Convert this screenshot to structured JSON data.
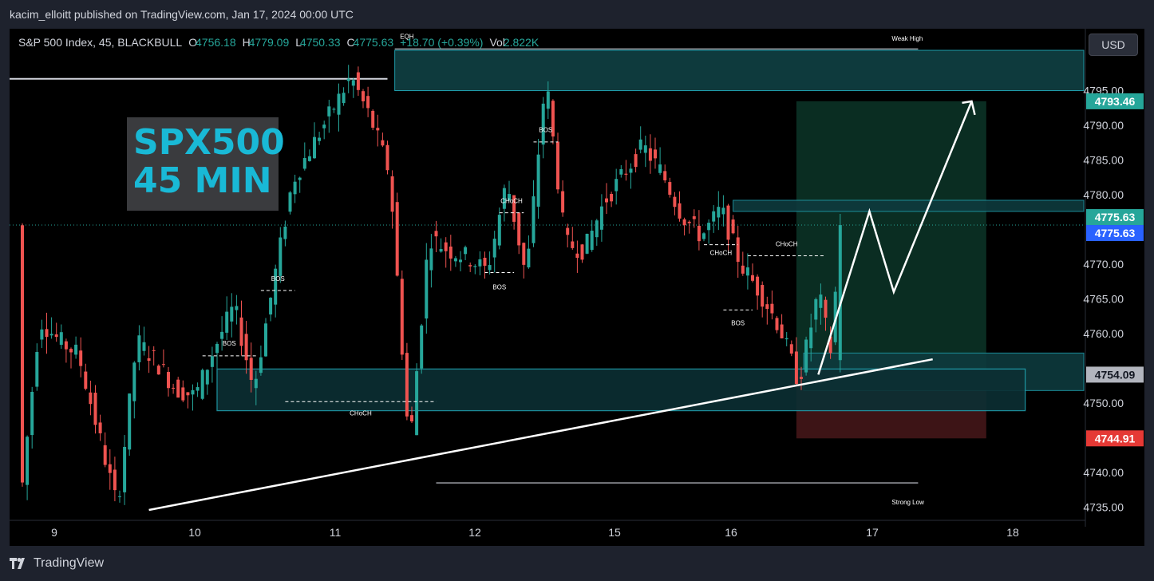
{
  "header": {
    "author": "kacim_elloitt",
    "published_text": "published on TradingView.com, Jan 17, 2024 00:00 UTC"
  },
  "legend": {
    "symbol": "S&P 500 Index, 45, BLACKBULL",
    "open_key": "O",
    "open": "4756.18",
    "high_key": "H",
    "high": "4779.09",
    "low_key": "L",
    "low": "4750.33",
    "close_key": "C",
    "close": "4775.63",
    "change": "+18.70 (+0.39%)",
    "vol_key": "Vol",
    "vol": "2.822K"
  },
  "currency_button": "USD",
  "overlay_title": {
    "line1": "SPX500",
    "line2": "45 MIN"
  },
  "footer": {
    "brand": "TradingView"
  },
  "colors": {
    "up": "#26a69a",
    "down": "#ef5350",
    "zone": "#0e3a3d",
    "zone_border": "#1f9aa8",
    "target": "#0b2f24",
    "stop": "#3d1416",
    "price_tag_green": "#26a69a",
    "price_tag_blue": "#2962ff",
    "price_tag_red": "#e53935",
    "price_tag_gray": "#b2b5be"
  },
  "chart_data": {
    "type": "candlestick",
    "symbol": "S&P 500 Index",
    "timeframe": "45",
    "ylim": [
      4733,
      4803
    ],
    "y_ticks": [
      4735,
      4740,
      4745,
      4750,
      4755,
      4760,
      4765,
      4770,
      4775,
      4780,
      4785,
      4790,
      4795
    ],
    "y_tick_labels": [
      "4735.00",
      "4740.00",
      "4745.00",
      "4750.00",
      "4755.00",
      "4760.00",
      "4765.00",
      "4770.00",
      "4775.00",
      "4780.00",
      "4785.00",
      "4790.00",
      "4795.00"
    ],
    "x_tick_labels": [
      "9",
      "10",
      "11",
      "12",
      "15",
      "16",
      "17",
      "18"
    ],
    "price_labels": [
      {
        "value": 4793.46,
        "text": "4793.46",
        "kind": "target"
      },
      {
        "value": 4775.63,
        "text": "4775.63",
        "kind": "last"
      },
      {
        "value": 4775.63,
        "text": "4775.63",
        "kind": "close"
      },
      {
        "value": 4754.09,
        "text": "4754.09",
        "kind": "entry"
      },
      {
        "value": 4744.91,
        "text": "4744.91",
        "kind": "stop"
      }
    ],
    "annotations": [
      {
        "text": "EQH"
      },
      {
        "text": "Weak High"
      },
      {
        "text": "Strong Low"
      },
      {
        "text": "BOS"
      },
      {
        "text": "BOS"
      },
      {
        "text": "BOS"
      },
      {
        "text": "BOS"
      },
      {
        "text": "BOS"
      },
      {
        "text": "CHoCH"
      },
      {
        "text": "CHoCH"
      },
      {
        "text": "CHoCH"
      },
      {
        "text": "CHoCH"
      }
    ],
    "position": {
      "entry": 4754.09,
      "target": 4793.46,
      "stop": 4744.91
    },
    "anchors": [
      {
        "slot": 0,
        "price": 4735
      },
      {
        "slot": 4,
        "price": 4762
      },
      {
        "slot": 8,
        "price": 4759
      },
      {
        "slot": 12,
        "price": 4757
      },
      {
        "slot": 16,
        "price": 4746
      },
      {
        "slot": 20,
        "price": 4735
      },
      {
        "slot": 24,
        "price": 4759
      },
      {
        "slot": 28,
        "price": 4756
      },
      {
        "slot": 32,
        "price": 4752
      },
      {
        "slot": 36,
        "price": 4751
      },
      {
        "slot": 40,
        "price": 4758
      },
      {
        "slot": 44,
        "price": 4764
      },
      {
        "slot": 48,
        "price": 4752
      },
      {
        "slot": 52,
        "price": 4767
      },
      {
        "slot": 56,
        "price": 4782
      },
      {
        "slot": 60,
        "price": 4787
      },
      {
        "slot": 64,
        "price": 4792
      },
      {
        "slot": 68,
        "price": 4797
      },
      {
        "slot": 72,
        "price": 4791
      },
      {
        "slot": 76,
        "price": 4783
      },
      {
        "slot": 80,
        "price": 4743
      },
      {
        "slot": 84,
        "price": 4774
      },
      {
        "slot": 88,
        "price": 4772
      },
      {
        "slot": 92,
        "price": 4771
      },
      {
        "slot": 96,
        "price": 4769
      },
      {
        "slot": 100,
        "price": 4782
      },
      {
        "slot": 104,
        "price": 4768
      },
      {
        "slot": 108,
        "price": 4797
      },
      {
        "slot": 112,
        "price": 4773
      },
      {
        "slot": 116,
        "price": 4772
      },
      {
        "slot": 120,
        "price": 4779
      },
      {
        "slot": 124,
        "price": 4783
      },
      {
        "slot": 128,
        "price": 4787
      },
      {
        "slot": 132,
        "price": 4783
      },
      {
        "slot": 136,
        "price": 4777
      },
      {
        "slot": 140,
        "price": 4774
      },
      {
        "slot": 144,
        "price": 4778
      },
      {
        "slot": 148,
        "price": 4770
      },
      {
        "slot": 152,
        "price": 4766
      },
      {
        "slot": 156,
        "price": 4761
      },
      {
        "slot": 160,
        "price": 4753
      },
      {
        "slot": 164,
        "price": 4766
      },
      {
        "slot": 167,
        "price": 4756
      },
      {
        "slot": 168,
        "price": 4775.63
      }
    ],
    "projection": [
      4754.09,
      4777.6,
      4766,
      4793.46
    ]
  }
}
